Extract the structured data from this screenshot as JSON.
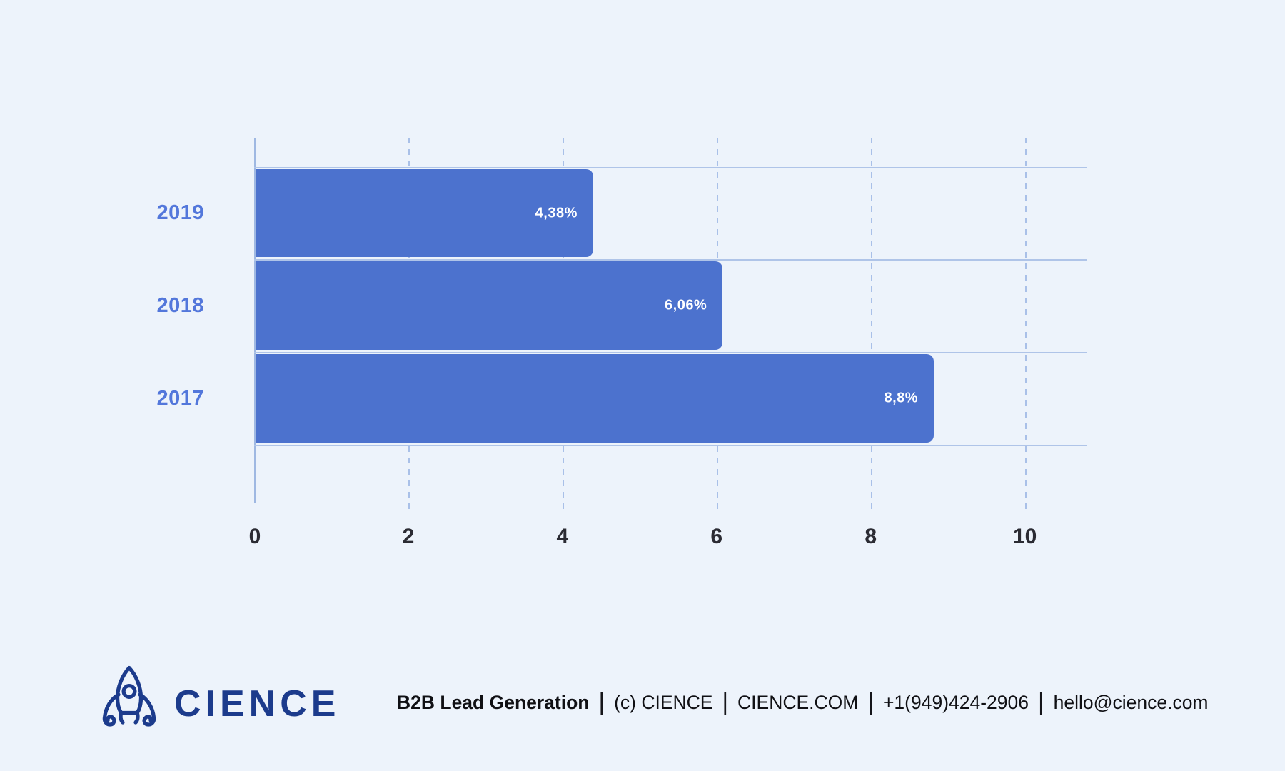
{
  "page": {
    "background": "#EDF3FB"
  },
  "chart_data": {
    "type": "bar",
    "orientation": "horizontal",
    "title": "",
    "xlabel": "",
    "ylabel": "",
    "categories": [
      "2019",
      "2018",
      "2017"
    ],
    "values": [
      4.38,
      6.06,
      8.8
    ],
    "value_labels": [
      "4,38%",
      "6,06%",
      "8,8%"
    ],
    "x_ticks": [
      0,
      2,
      4,
      6,
      8,
      10
    ],
    "xlim": [
      0,
      10.8
    ],
    "grid": "vertical-dashed",
    "legend": "none",
    "bar_color": "#4C72CE",
    "category_label_color": "#5377DB",
    "value_label_color": "#FFFFFF",
    "tick_label_color": "#2B2B33",
    "axis_line_color": "#9FB8E2",
    "gridline_color": "#A9C0E8",
    "row_line_color": "#AFC4E8"
  },
  "footer": {
    "logo_text": "CIENCE",
    "logo_color": "#1C3B8C",
    "separator": "|",
    "info": [
      {
        "text": "B2B Lead Generation",
        "bold": true
      },
      {
        "text": "(c) CIENCE",
        "bold": false
      },
      {
        "text": "CIENCE.COM",
        "bold": false
      },
      {
        "text": "+1(949)424-2906",
        "bold": false
      },
      {
        "text": "hello@cience.com",
        "bold": false
      }
    ]
  }
}
